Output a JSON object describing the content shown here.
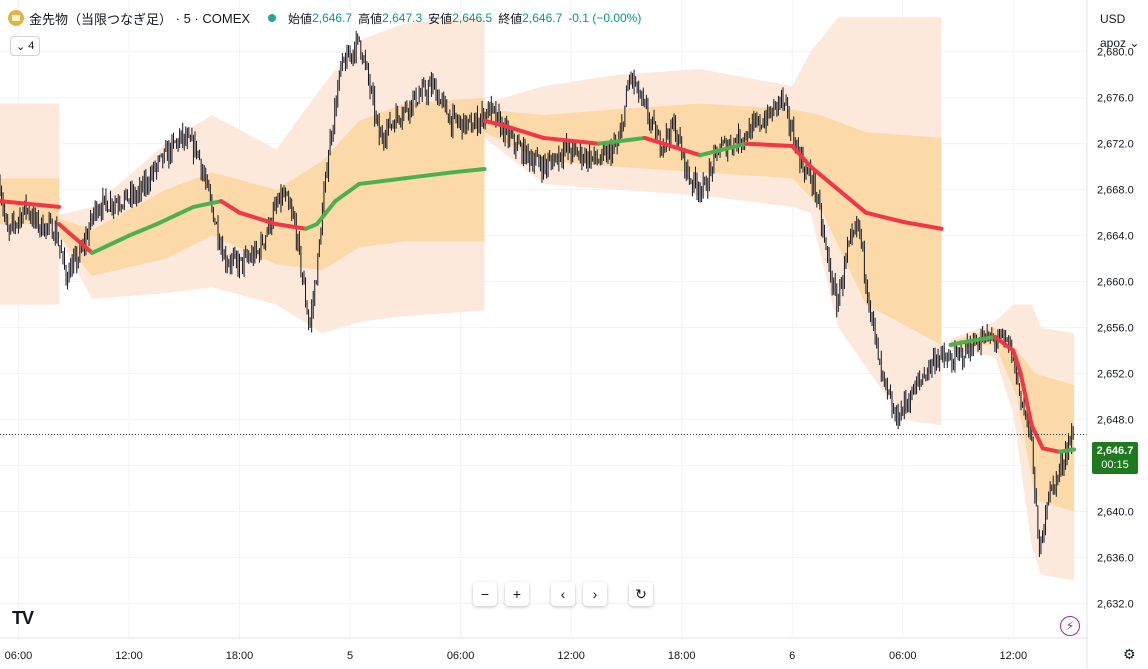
{
  "header": {
    "symbol_name": "金先物（当限つなぎ足）",
    "interval": "5",
    "exchange": "COMEX",
    "ohlc": [
      {
        "label": "始値",
        "value": "2,646.7"
      },
      {
        "label": "高値",
        "value": "2,647.3"
      },
      {
        "label": "安値",
        "value": "2,646.5"
      },
      {
        "label": "終値",
        "value": "2,646.7"
      }
    ],
    "change": "-0.1 (−0.00%)"
  },
  "indicator_count": "4",
  "currency": "USD",
  "scale_mode": "apoz",
  "last_price": "2,646.7",
  "countdown": "00:15",
  "toolbar": {
    "zoom_out": "−",
    "zoom_in": "+",
    "scroll_left": "‹",
    "scroll_right": "›",
    "reset": "↻"
  },
  "colors": {
    "up": "#089981",
    "down": "#f23645",
    "vwap_up": "#4caf50",
    "vwap_down": "#f23645",
    "band_outer": "#fde8dc",
    "band_inner": "#fbd9a8"
  },
  "chart_data": {
    "type": "candlestick",
    "y_ticks": [
      2632.0,
      2636.0,
      2640.0,
      2644.0,
      2648.0,
      2652.0,
      2656.0,
      2660.0,
      2664.0,
      2668.0,
      2672.0,
      2676.0,
      2680.0
    ],
    "y_tick_labels": [
      "2,632.0",
      "2,636.0",
      "2,640.0",
      "2,644.0",
      "2,648.0",
      "2,652.0",
      "2,656.0",
      "2,660.0",
      "2,664.0",
      "2,668.0",
      "2,672.0",
      "2,676.0",
      "2,680.0"
    ],
    "ylim": [
      2629.0,
      2684.5
    ],
    "x_labels": [
      "06:00",
      "12:00",
      "18:00",
      "5",
      "06:00",
      "12:00",
      "18:00",
      "6",
      "06:00",
      "12:00"
    ],
    "xlim_hours": [
      -19.0,
      40.0
    ],
    "x_label_hours": [
      -18,
      -12,
      -6,
      0,
      6,
      12,
      18,
      24,
      30,
      36
    ],
    "price_path": [
      [
        -19.0,
        2668.5
      ],
      [
        -18.6,
        2664.0
      ],
      [
        -18.0,
        2665.5
      ],
      [
        -17.6,
        2666.5
      ],
      [
        -17.0,
        2665.0
      ],
      [
        -16.0,
        2664.5
      ],
      [
        -15.4,
        2660.5
      ],
      [
        -14.6,
        2662.5
      ],
      [
        -13.8,
        2666.5
      ],
      [
        -12.8,
        2667.0
      ],
      [
        -11.5,
        2667.5
      ],
      [
        -10.5,
        2670.0
      ],
      [
        -9.2,
        2672.5
      ],
      [
        -8.3,
        2671.5
      ],
      [
        -7.6,
        2667.0
      ],
      [
        -6.8,
        2662.0
      ],
      [
        -6.0,
        2661.5
      ],
      [
        -5.0,
        2662.5
      ],
      [
        -4.0,
        2666.5
      ],
      [
        -3.6,
        2667.5
      ],
      [
        -3.0,
        2665.0
      ],
      [
        -2.2,
        2656.0
      ],
      [
        -1.8,
        2661.0
      ],
      [
        -1.2,
        2671.0
      ],
      [
        -0.5,
        2678.5
      ],
      [
        0.5,
        2681.0
      ],
      [
        1.0,
        2677.5
      ],
      [
        1.6,
        2672.5
      ],
      [
        2.6,
        2674.5
      ],
      [
        3.6,
        2676.0
      ],
      [
        4.5,
        2677.0
      ],
      [
        5.5,
        2674.0
      ],
      [
        6.6,
        2673.5
      ],
      [
        7.6,
        2675.0
      ],
      [
        8.6,
        2672.5
      ],
      [
        9.6,
        2671.0
      ],
      [
        10.6,
        2670.0
      ],
      [
        11.6,
        2671.5
      ],
      [
        12.6,
        2671.0
      ],
      [
        13.6,
        2670.5
      ],
      [
        14.6,
        2672.0
      ],
      [
        15.2,
        2678.0
      ],
      [
        16.0,
        2675.0
      ],
      [
        16.8,
        2672.0
      ],
      [
        17.6,
        2673.5
      ],
      [
        18.4,
        2669.0
      ],
      [
        19.2,
        2668.0
      ],
      [
        20.0,
        2671.5
      ],
      [
        21.2,
        2672.5
      ],
      [
        22.0,
        2673.5
      ],
      [
        22.8,
        2674.5
      ],
      [
        23.4,
        2676.0
      ],
      [
        24.0,
        2673.0
      ],
      [
        24.6,
        2670.0
      ],
      [
        25.2,
        2668.5
      ],
      [
        25.8,
        2663.0
      ],
      [
        26.4,
        2658.0
      ],
      [
        27.0,
        2662.5
      ],
      [
        27.6,
        2665.0
      ],
      [
        28.2,
        2658.0
      ],
      [
        28.8,
        2652.0
      ],
      [
        29.6,
        2648.0
      ],
      [
        30.4,
        2650.0
      ],
      [
        31.2,
        2652.0
      ],
      [
        31.8,
        2653.5
      ],
      [
        32.6,
        2653.0
      ],
      [
        33.4,
        2654.0
      ],
      [
        34.2,
        2655.0
      ],
      [
        35.2,
        2655.0
      ],
      [
        35.8,
        2654.5
      ],
      [
        36.4,
        2650.0
      ],
      [
        37.0,
        2646.0
      ],
      [
        37.4,
        2636.0
      ],
      [
        37.8,
        2641.0
      ],
      [
        38.4,
        2643.0
      ],
      [
        39.0,
        2646.0
      ],
      [
        39.3,
        2646.7
      ]
    ],
    "sessions": [
      {
        "vwap": [
          [
            -19.0,
            2667.0
          ],
          [
            -15.8,
            2666.5
          ]
        ],
        "inner": [
          [
            -19.0,
            2669.0,
            2665.0
          ],
          [
            -15.8,
            2669.0,
            2665.0
          ]
        ],
        "outer": [
          [
            -19.0,
            2675.5,
            2658.0
          ],
          [
            -15.8,
            2675.5,
            2658.0
          ]
        ]
      },
      {
        "vwap": [
          [
            -15.8,
            2665.0
          ],
          [
            -14.0,
            2662.5
          ],
          [
            -12.0,
            2664.0
          ],
          [
            -10.5,
            2665.0
          ],
          [
            -8.5,
            2666.5
          ],
          [
            -7.0,
            2667.0
          ],
          [
            -6.0,
            2666.0
          ],
          [
            -4.0,
            2665.0
          ],
          [
            -2.4,
            2664.6
          ],
          [
            -1.8,
            2665.0
          ],
          [
            -0.8,
            2667.0
          ],
          [
            0.5,
            2668.5
          ],
          [
            3.0,
            2669.0
          ],
          [
            5.5,
            2669.5
          ],
          [
            7.3,
            2669.8
          ]
        ],
        "inner": [
          [
            -15.8,
            2665.5,
            2664.0
          ],
          [
            -14.0,
            2664.5,
            2660.5
          ],
          [
            -10.0,
            2668.0,
            2662.0
          ],
          [
            -7.5,
            2669.5,
            2664.0
          ],
          [
            -4.0,
            2668.0,
            2661.5
          ],
          [
            -1.5,
            2670.5,
            2661.0
          ],
          [
            0.5,
            2674.0,
            2663.0
          ],
          [
            3.0,
            2675.5,
            2663.5
          ],
          [
            7.3,
            2676.0,
            2663.5
          ]
        ],
        "outer": [
          [
            -15.8,
            2665.8,
            2663.8
          ],
          [
            -14.0,
            2666.5,
            2658.5
          ],
          [
            -10.0,
            2672.0,
            2659.0
          ],
          [
            -7.5,
            2674.5,
            2659.5
          ],
          [
            -4.0,
            2671.5,
            2658.0
          ],
          [
            -1.5,
            2677.0,
            2655.5
          ],
          [
            0.5,
            2681.0,
            2656.5
          ],
          [
            3.0,
            2682.5,
            2657.0
          ],
          [
            7.3,
            2683.0,
            2657.5
          ]
        ]
      },
      {
        "vwap": [
          [
            7.3,
            2674.0
          ],
          [
            8.5,
            2673.5
          ],
          [
            10.5,
            2672.5
          ],
          [
            13.5,
            2672.0
          ],
          [
            16.0,
            2672.5
          ],
          [
            19.0,
            2671.0
          ],
          [
            21.5,
            2672.0
          ],
          [
            24.0,
            2671.8
          ],
          [
            25.0,
            2670.0
          ],
          [
            26.5,
            2668.0
          ],
          [
            28.0,
            2666.0
          ],
          [
            30.0,
            2665.2
          ],
          [
            32.1,
            2664.6
          ]
        ],
        "inner": [
          [
            7.3,
            2675.0,
            2673.0
          ],
          [
            10.5,
            2674.5,
            2670.5
          ],
          [
            14.5,
            2675.0,
            2670.0
          ],
          [
            19.0,
            2675.5,
            2669.5
          ],
          [
            24.0,
            2675.0,
            2669.0
          ],
          [
            25.5,
            2674.5,
            2666.5
          ],
          [
            28.0,
            2673.0,
            2658.0
          ],
          [
            32.1,
            2672.5,
            2654.5
          ]
        ],
        "outer": [
          [
            7.3,
            2675.5,
            2672.5
          ],
          [
            10.5,
            2677.0,
            2668.5
          ],
          [
            14.5,
            2678.0,
            2668.0
          ],
          [
            19.0,
            2678.5,
            2667.5
          ],
          [
            24.0,
            2677.0,
            2666.5
          ],
          [
            25.0,
            2680.0,
            2666.0
          ],
          [
            26.5,
            2683.0,
            2656.0
          ],
          [
            30.0,
            2683.0,
            2648.0
          ],
          [
            32.1,
            2683.0,
            2647.5
          ]
        ]
      },
      {
        "vwap": [
          [
            32.6,
            2654.5
          ],
          [
            33.5,
            2654.8
          ],
          [
            34.3,
            2655.0
          ],
          [
            35.0,
            2655.2
          ],
          [
            36.0,
            2654.0
          ],
          [
            36.4,
            2652.0
          ],
          [
            37.0,
            2647.5
          ],
          [
            37.6,
            2645.5
          ],
          [
            38.5,
            2645.2
          ],
          [
            39.3,
            2645.4
          ]
        ],
        "inner": [
          [
            32.6,
            2654.8,
            2654.2
          ],
          [
            35.0,
            2656.0,
            2654.5
          ],
          [
            36.2,
            2654.0,
            2650.0
          ],
          [
            37.2,
            2652.0,
            2641.0
          ],
          [
            39.3,
            2651.0,
            2640.0
          ]
        ],
        "outer": [
          [
            32.6,
            2655.0,
            2654.0
          ],
          [
            35.0,
            2656.5,
            2653.5
          ],
          [
            36.0,
            2658.0,
            2648.5
          ],
          [
            37.0,
            2658.0,
            2637.0
          ],
          [
            37.5,
            2656.0,
            2634.5
          ],
          [
            39.3,
            2655.5,
            2634.0
          ]
        ]
      }
    ]
  }
}
